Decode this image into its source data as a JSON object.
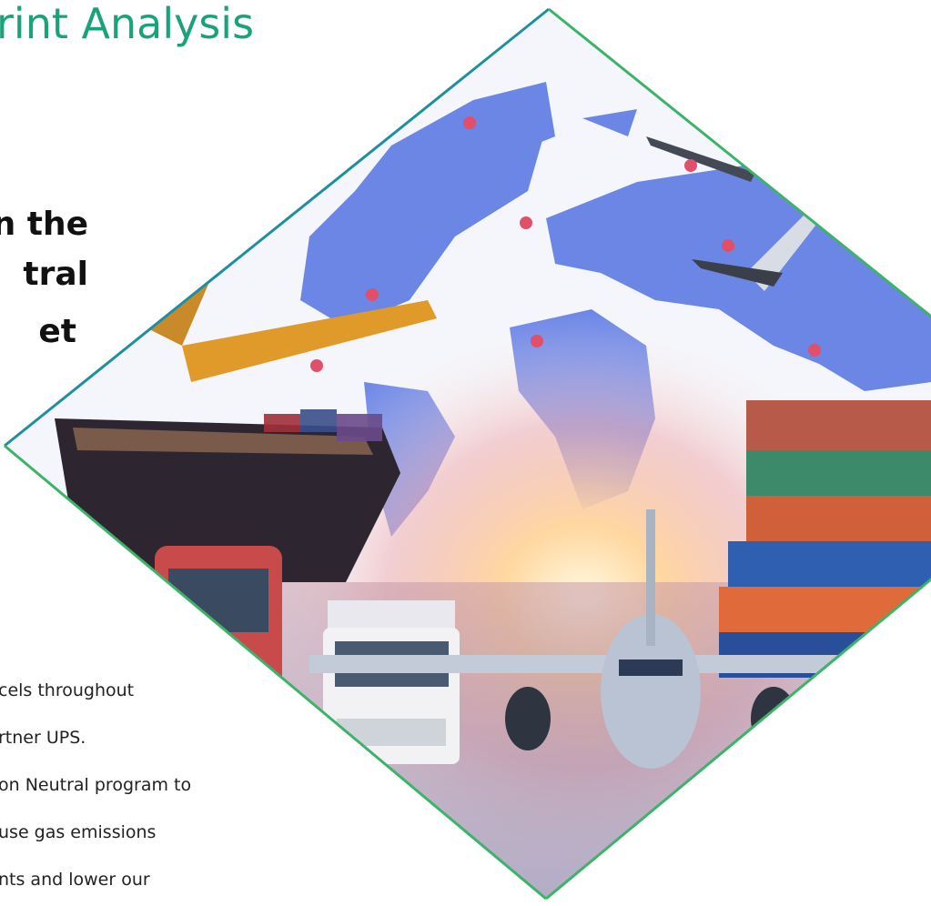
{
  "header": {
    "title": "rint Analysis"
  },
  "heading": {
    "lines": [
      "n the",
      "tral",
      "et"
    ]
  },
  "body": {
    "lines": [
      "cels throughout",
      "rtner UPS.",
      "on Neutral program to",
      "use gas emissions",
      "nts and lower our"
    ]
  }
}
